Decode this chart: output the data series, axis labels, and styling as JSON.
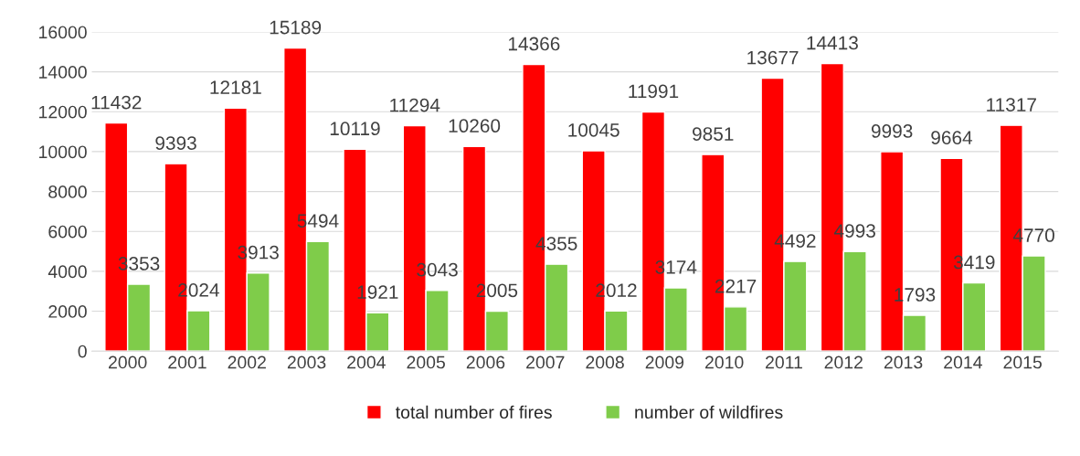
{
  "chart_data": {
    "type": "bar",
    "categories": [
      "2000",
      "2001",
      "2002",
      "2003",
      "2004",
      "2005",
      "2006",
      "2007",
      "2008",
      "2009",
      "2010",
      "2011",
      "2012",
      "2013",
      "2014",
      "2015"
    ],
    "series": [
      {
        "name": "total number of fires",
        "color": "#ff0000",
        "values": [
          11432,
          9393,
          12181,
          15189,
          10119,
          11294,
          10260,
          14366,
          10045,
          11991,
          9851,
          13677,
          14413,
          9993,
          9664,
          11317
        ]
      },
      {
        "name": "number of wildfires",
        "color": "#7fcc4a",
        "values": [
          3353,
          2024,
          3913,
          5494,
          1921,
          3043,
          2005,
          4355,
          2012,
          3174,
          2217,
          4492,
          4993,
          1793,
          3419,
          4770
        ]
      }
    ],
    "ylim": [
      0,
      16000
    ],
    "yticks": [
      0,
      2000,
      4000,
      6000,
      8000,
      10000,
      12000,
      14000,
      16000
    ],
    "grid": "y",
    "legend": "bottom",
    "data_labels": true
  }
}
